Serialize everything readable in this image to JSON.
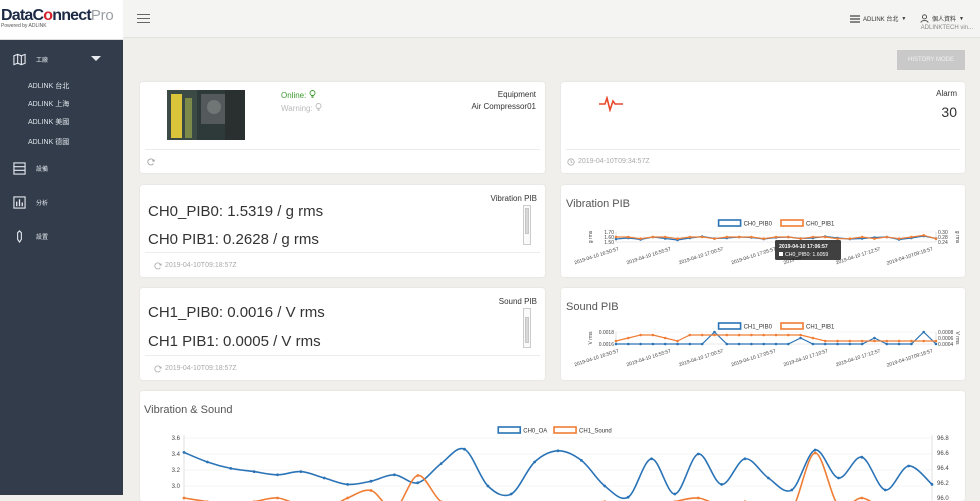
{
  "sidebar": {
    "brand_main": "DataC",
    "brand_o": "o",
    "brand_rest": "nnect",
    "brand_pro": "Pro",
    "brand_tagline": "Powered by ADLINK",
    "group_label": "工廠",
    "sites": [
      "ADLINK 台北",
      "ADLINK 上海",
      "ADLINK 美國",
      "ADLINK 德國"
    ],
    "items": [
      {
        "label": "設備",
        "icon": "device-icon"
      },
      {
        "label": "分析",
        "icon": "analytics-icon"
      },
      {
        "label": "設置",
        "icon": "settings-pen-icon"
      }
    ]
  },
  "topbar": {
    "site_menu": "ADLINK 台北",
    "user_menu": "個人資料",
    "user_sub": "ADLINKTECH vin...",
    "history_button": "HISTORY MODE"
  },
  "equipment_card": {
    "online_label": "Online:",
    "warning_label": "Warning:",
    "equipment_label": "Equipment",
    "equipment_name": "Air Compressor01"
  },
  "alarm_card": {
    "label": "Alarm",
    "count": "30",
    "timestamp": "2019-04-10T09:34:57Z"
  },
  "vibration_card": {
    "label": "Vibration PIB",
    "line1": "CH0_PIB0: 1.5319 / g rms",
    "line2": "CH0  PIB1: 0.2628 / g rms",
    "timestamp": "2019-04-10T09:18:57Z"
  },
  "sound_card": {
    "label": "Sound PIB",
    "line1": "CH1_PIB0: 0.0016 / V rms",
    "line2": "CH1  PIB1: 0.0005 / V rms",
    "timestamp": "2019-04-10T09:18:57Z"
  },
  "vibration_chart": {
    "title": "Vibration PIB",
    "legend": [
      "CH0_PIB0",
      "CH0_PIB1"
    ],
    "y_left_unit": "g rms",
    "y_left_ticks": [
      "1.70",
      "1.60",
      "1.50"
    ],
    "y_right_unit": "g rms",
    "y_right_ticks": [
      "0.30",
      "0.28",
      "0.24"
    ],
    "x_ticks": [
      "2019-04-10 16:50:57",
      "2019-04-10 16:55:57",
      "2019-04-10 17:00:57",
      "2019-04-10 17:05:57",
      "2019-04-10 17:10:57",
      "2019-04-10 17:12:57",
      "2019-04-10T09:18:57"
    ],
    "tooltip_time": "2019-04-10 17:06:57",
    "tooltip_value": "CH0_PIB0: 1.6059"
  },
  "sound_chart": {
    "title": "Sound PIB",
    "legend": [
      "CH1_PIB0",
      "CH1_PIB1"
    ],
    "y_left_unit": "V rms",
    "y_left_ticks": [
      "0.0018",
      "0.0016"
    ],
    "y_right_unit": "V rms",
    "y_right_ticks": [
      "0.0008",
      "0.0006",
      "0.0004"
    ],
    "x_ticks": [
      "2019-04-10 16:50:57",
      "2019-04-10 16:55:57",
      "2019-04-10 17:00:57",
      "2019-04-10 17:05:57",
      "2019-04-10 17:10:57",
      "2019-04-10 17:12:57",
      "2019-04-10T09:18:57"
    ]
  },
  "vs_chart": {
    "title": "Vibration & Sound",
    "legend": [
      "CH0_OA",
      "CH1_Sound"
    ],
    "y_left_ticks": [
      "3.6",
      "3.4",
      "3.2",
      "3.0"
    ],
    "y_right_ticks": [
      "96.8",
      "96.6",
      "96.4",
      "96.2",
      "96.0"
    ]
  },
  "chart_data": [
    {
      "type": "line",
      "title": "Vibration PIB",
      "series": [
        {
          "name": "CH0_PIB0",
          "color": "#2a73b6",
          "values": [
            1.56,
            1.58,
            1.55,
            1.6,
            1.57,
            1.54,
            1.58,
            1.61,
            1.57,
            1.58,
            1.6,
            1.59,
            1.56,
            1.59,
            1.6,
            1.57,
            1.58,
            1.61,
            1.58,
            1.56,
            1.57,
            1.59,
            1.6,
            1.55,
            1.58,
            1.62,
            1.57
          ]
        },
        {
          "name": "CH0_PIB1",
          "color": "#ef7d35",
          "values": [
            0.27,
            0.27,
            0.26,
            0.27,
            0.27,
            0.26,
            0.27,
            0.27,
            0.26,
            0.27,
            0.27,
            0.27,
            0.26,
            0.27,
            0.27,
            0.26,
            0.27,
            0.27,
            0.26,
            0.26,
            0.27,
            0.26,
            0.27,
            0.26,
            0.27,
            0.28,
            0.26
          ]
        }
      ]
    },
    {
      "type": "line",
      "title": "Sound PIB",
      "series": [
        {
          "name": "CH1_PIB0",
          "color": "#2a73b6",
          "values": [
            0.0016,
            0.0016,
            0.0016,
            0.0016,
            0.0016,
            0.0016,
            0.0016,
            0.0016,
            0.0018,
            0.0016,
            0.0016,
            0.0016,
            0.0016,
            0.0016,
            0.0016,
            0.0017,
            0.0016,
            0.0016,
            0.0016,
            0.0016,
            0.0016,
            0.0017,
            0.0016,
            0.0016,
            0.0016,
            0.0018,
            0.0016
          ]
        },
        {
          "name": "CH1_PIB1",
          "color": "#ef7d35",
          "values": [
            0.0005,
            0.0006,
            0.0007,
            0.0007,
            0.0006,
            0.0005,
            0.0007,
            0.0007,
            0.0007,
            0.0007,
            0.0007,
            0.0007,
            0.0007,
            0.0007,
            0.0007,
            0.0007,
            0.0006,
            0.0005,
            0.0005,
            0.0005,
            0.0005,
            0.0005,
            0.0005,
            0.0005,
            0.0005,
            0.0005,
            0.0005
          ]
        }
      ]
    },
    {
      "type": "line",
      "title": "Vibration & Sound",
      "series": [
        {
          "name": "CH0_OA",
          "color": "#2a73b6",
          "values": [
            3.42,
            3.3,
            3.22,
            3.18,
            3.14,
            3.18,
            3.1,
            3.02,
            3.06,
            3.14,
            3.04,
            3.28,
            3.46,
            3.0,
            2.9,
            3.3,
            3.44,
            3.32,
            3.0,
            2.86,
            3.34,
            2.9,
            3.4,
            3.02,
            3.34,
            3.1,
            2.95,
            3.45,
            3.1,
            3.36,
            2.95,
            3.25,
            3.02
          ]
        },
        {
          "name": "CH1_Sound",
          "color": "#ef7d35",
          "values": [
            96.0,
            95.95,
            95.9,
            95.95,
            96.0,
            95.9,
            95.85,
            96.0,
            96.1,
            95.85,
            96.3,
            95.95,
            95.9,
            95.8,
            95.9,
            95.85,
            95.85,
            95.9,
            95.95,
            95.85,
            95.85,
            95.95,
            96.0,
            95.9,
            95.95,
            95.9,
            95.85,
            96.6,
            95.9,
            96.0,
            95.85,
            95.9,
            95.85
          ]
        }
      ]
    }
  ]
}
